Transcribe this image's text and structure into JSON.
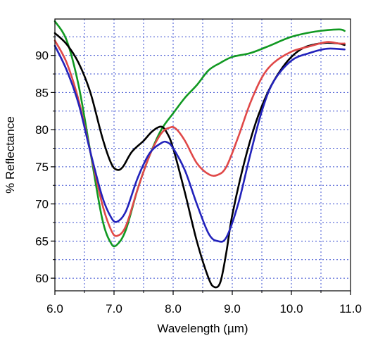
{
  "chart_data": {
    "type": "line",
    "title": "",
    "xlabel": "Wavelength (µm)",
    "ylabel": "% Reflectance",
    "xlim": [
      6.0,
      11.0
    ],
    "ylim": [
      58.3,
      94.9
    ],
    "x_ticks": [
      6.0,
      7.0,
      8.0,
      9.0,
      10.0,
      11.0
    ],
    "x_tick_labels": [
      "6.0",
      "7.0",
      "8.0",
      "9.0",
      "10.0",
      "11.0"
    ],
    "y_ticks": [
      60,
      65,
      70,
      75,
      80,
      85,
      90
    ],
    "y_tick_labels": [
      "60",
      "65",
      "70",
      "75",
      "80",
      "85",
      "90"
    ],
    "x_minor_grid": [
      6.5,
      7.5,
      8.5,
      9.5,
      10.5
    ],
    "y_minor_grid": [
      62.5,
      67.5,
      72.5,
      77.5,
      82.5,
      87.5,
      92.5
    ],
    "grid": true,
    "legend": "none",
    "series": [
      {
        "color": "#119922",
        "x": [
          6.0,
          6.2,
          6.4,
          6.6,
          6.8,
          6.95,
          7.05,
          7.2,
          7.4,
          7.6,
          7.8,
          8.0,
          8.2,
          8.4,
          8.6,
          8.8,
          9.0,
          9.3,
          9.6,
          10.0,
          10.4,
          10.8,
          10.9
        ],
        "y": [
          94.6,
          92.0,
          86.0,
          77.0,
          68.0,
          64.7,
          64.5,
          66.5,
          72.0,
          76.5,
          80.0,
          82.2,
          84.3,
          86.0,
          88.0,
          89.0,
          89.8,
          90.3,
          91.2,
          92.5,
          93.2,
          93.5,
          93.3
        ]
      },
      {
        "color": "#000000",
        "x": [
          6.0,
          6.2,
          6.4,
          6.6,
          6.8,
          6.95,
          7.05,
          7.15,
          7.3,
          7.5,
          7.65,
          7.8,
          7.9,
          8.0,
          8.2,
          8.4,
          8.6,
          8.7,
          8.8,
          8.9,
          9.0,
          9.2,
          9.4,
          9.6,
          9.8,
          10.0,
          10.2,
          10.4,
          10.6,
          10.8,
          10.9
        ],
        "y": [
          93.0,
          91.5,
          89.0,
          85.0,
          79.0,
          75.5,
          74.6,
          75.0,
          77.0,
          78.5,
          79.8,
          80.4,
          79.5,
          77.5,
          71.5,
          65.0,
          60.0,
          58.8,
          59.5,
          63.5,
          68.5,
          75.5,
          81.0,
          85.0,
          87.8,
          89.8,
          91.0,
          91.5,
          91.7,
          91.6,
          91.4
        ]
      },
      {
        "color": "#e04848",
        "x": [
          6.0,
          6.2,
          6.4,
          6.6,
          6.8,
          6.95,
          7.05,
          7.2,
          7.4,
          7.6,
          7.8,
          7.95,
          8.05,
          8.2,
          8.4,
          8.6,
          8.75,
          8.9,
          9.1,
          9.3,
          9.5,
          9.7,
          10.0,
          10.3,
          10.6,
          10.8,
          10.9
        ],
        "y": [
          92.0,
          89.0,
          84.0,
          77.0,
          70.0,
          66.5,
          65.7,
          67.0,
          72.0,
          76.5,
          79.5,
          80.3,
          80.1,
          78.5,
          75.5,
          74.0,
          73.9,
          75.0,
          79.0,
          83.5,
          87.0,
          89.0,
          90.5,
          91.2,
          91.8,
          91.6,
          91.6
        ]
      },
      {
        "color": "#2222bb",
        "x": [
          6.0,
          6.2,
          6.4,
          6.6,
          6.8,
          6.95,
          7.05,
          7.2,
          7.4,
          7.6,
          7.8,
          7.9,
          8.0,
          8.2,
          8.4,
          8.6,
          8.75,
          8.9,
          9.1,
          9.3,
          9.5,
          9.7,
          10.0,
          10.3,
          10.6,
          10.9
        ],
        "y": [
          91.3,
          88.0,
          83.5,
          77.0,
          71.0,
          68.2,
          67.6,
          69.0,
          73.5,
          76.8,
          78.2,
          78.3,
          77.5,
          74.5,
          70.0,
          66.0,
          65.0,
          65.5,
          70.0,
          76.5,
          82.5,
          86.5,
          89.3,
          90.3,
          90.9,
          90.8
        ]
      }
    ]
  }
}
